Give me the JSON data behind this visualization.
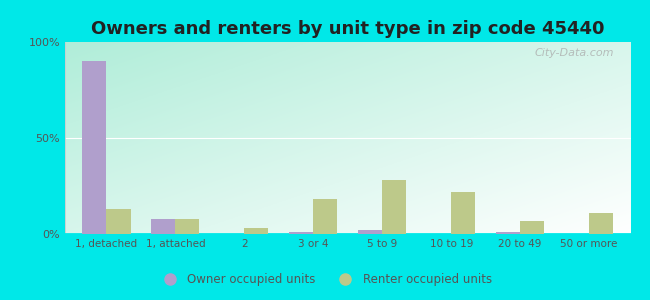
{
  "title": "Owners and renters by unit type in zip code 45440",
  "categories": [
    "1, detached",
    "1, attached",
    "2",
    "3 or 4",
    "5 to 9",
    "10 to 19",
    "20 to 49",
    "50 or more"
  ],
  "owner_values": [
    90,
    8,
    0,
    1,
    2,
    0,
    1,
    0
  ],
  "renter_values": [
    13,
    8,
    3,
    18,
    28,
    22,
    7,
    11
  ],
  "owner_color": "#b09fcc",
  "renter_color": "#bdc98a",
  "background_color": "#00e8e8",
  "ylim": [
    0,
    100
  ],
  "yticks": [
    0,
    50,
    100
  ],
  "ytick_labels": [
    "0%",
    "50%",
    "100%"
  ],
  "bar_width": 0.35,
  "legend_owner": "Owner occupied units",
  "legend_renter": "Renter occupied units",
  "title_fontsize": 13,
  "watermark": "City-Data.com",
  "grad_top_left": "#aae8d8",
  "grad_top_right": "#e8f5e8",
  "grad_bottom_left": "#c8f0e0",
  "grad_bottom_right": "#f5fff5"
}
